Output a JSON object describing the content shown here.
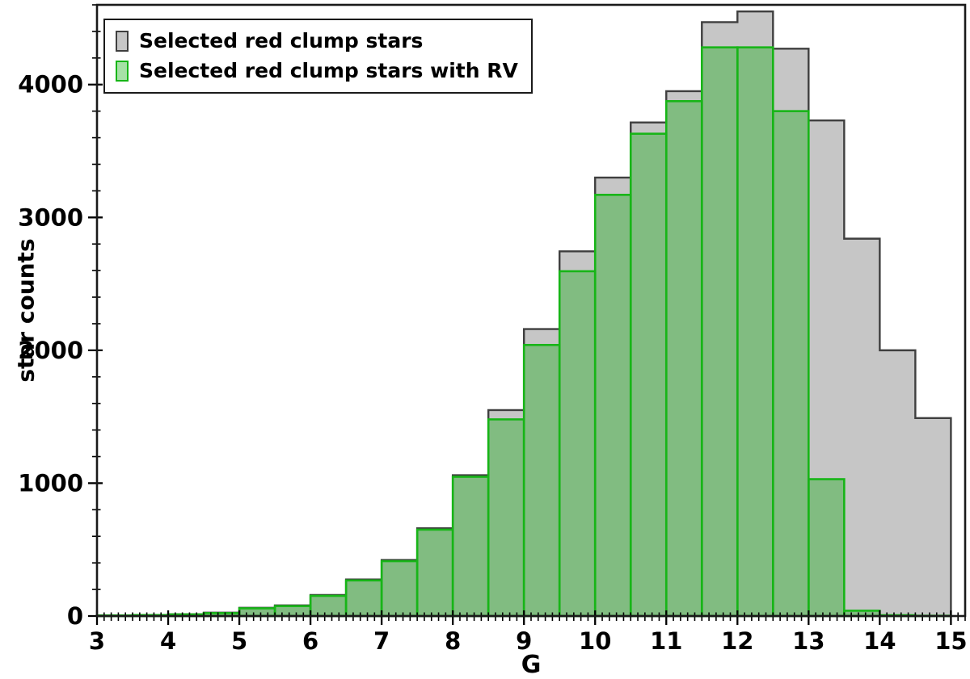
{
  "figure": {
    "background": "#ffffff"
  },
  "chart_data": {
    "type": "bar",
    "subtype": "histogram",
    "title": "",
    "xlabel": "G",
    "ylabel": "star counts",
    "grid": false,
    "legend": {
      "position": "upper-left",
      "items": [
        "Selected red clump stars",
        "Selected red clump stars with RV"
      ]
    },
    "xlim": [
      3.0,
      15.2
    ],
    "ylim": [
      0,
      4600
    ],
    "x_major_ticks": [
      3,
      4,
      5,
      6,
      7,
      8,
      9,
      10,
      11,
      12,
      13,
      14,
      15
    ],
    "x_minor_step": 0.1,
    "y_major_ticks": [
      0,
      1000,
      2000,
      3000,
      4000
    ],
    "y_minor_step": 200,
    "bin_edges": [
      3.0,
      3.5,
      4.0,
      4.5,
      5.0,
      5.5,
      6.0,
      6.5,
      7.0,
      7.5,
      8.0,
      8.5,
      9.0,
      9.5,
      10.0,
      10.5,
      11.0,
      11.5,
      12.0,
      12.5,
      13.0,
      13.5,
      14.0,
      14.5,
      15.0
    ],
    "series": [
      {
        "name": "Selected red clump stars",
        "histtype": "stepfilled",
        "fill": "#c6c6c6",
        "fill_opacity": 1,
        "edge": "#3f3f3f",
        "edge_width": 2.4,
        "values": [
          5,
          8,
          13,
          25,
          62,
          80,
          158,
          275,
          422,
          660,
          1060,
          1550,
          2160,
          2745,
          3300,
          3715,
          3950,
          4470,
          4550,
          4270,
          3730,
          2840,
          2000,
          1490
        ]
      },
      {
        "name": "Selected red clump stars with RV",
        "histtype": "bar",
        "fill": "#00aa00",
        "fill_opacity": 0.35,
        "edge": "#17b517",
        "edge_width": 2.6,
        "values": [
          4,
          7,
          12,
          22,
          58,
          75,
          152,
          268,
          413,
          650,
          1048,
          1480,
          2040,
          2595,
          3170,
          3630,
          3875,
          4280,
          4280,
          3800,
          1030,
          40,
          6,
          2
        ]
      }
    ],
    "axis_color": "#1a1a1a"
  }
}
